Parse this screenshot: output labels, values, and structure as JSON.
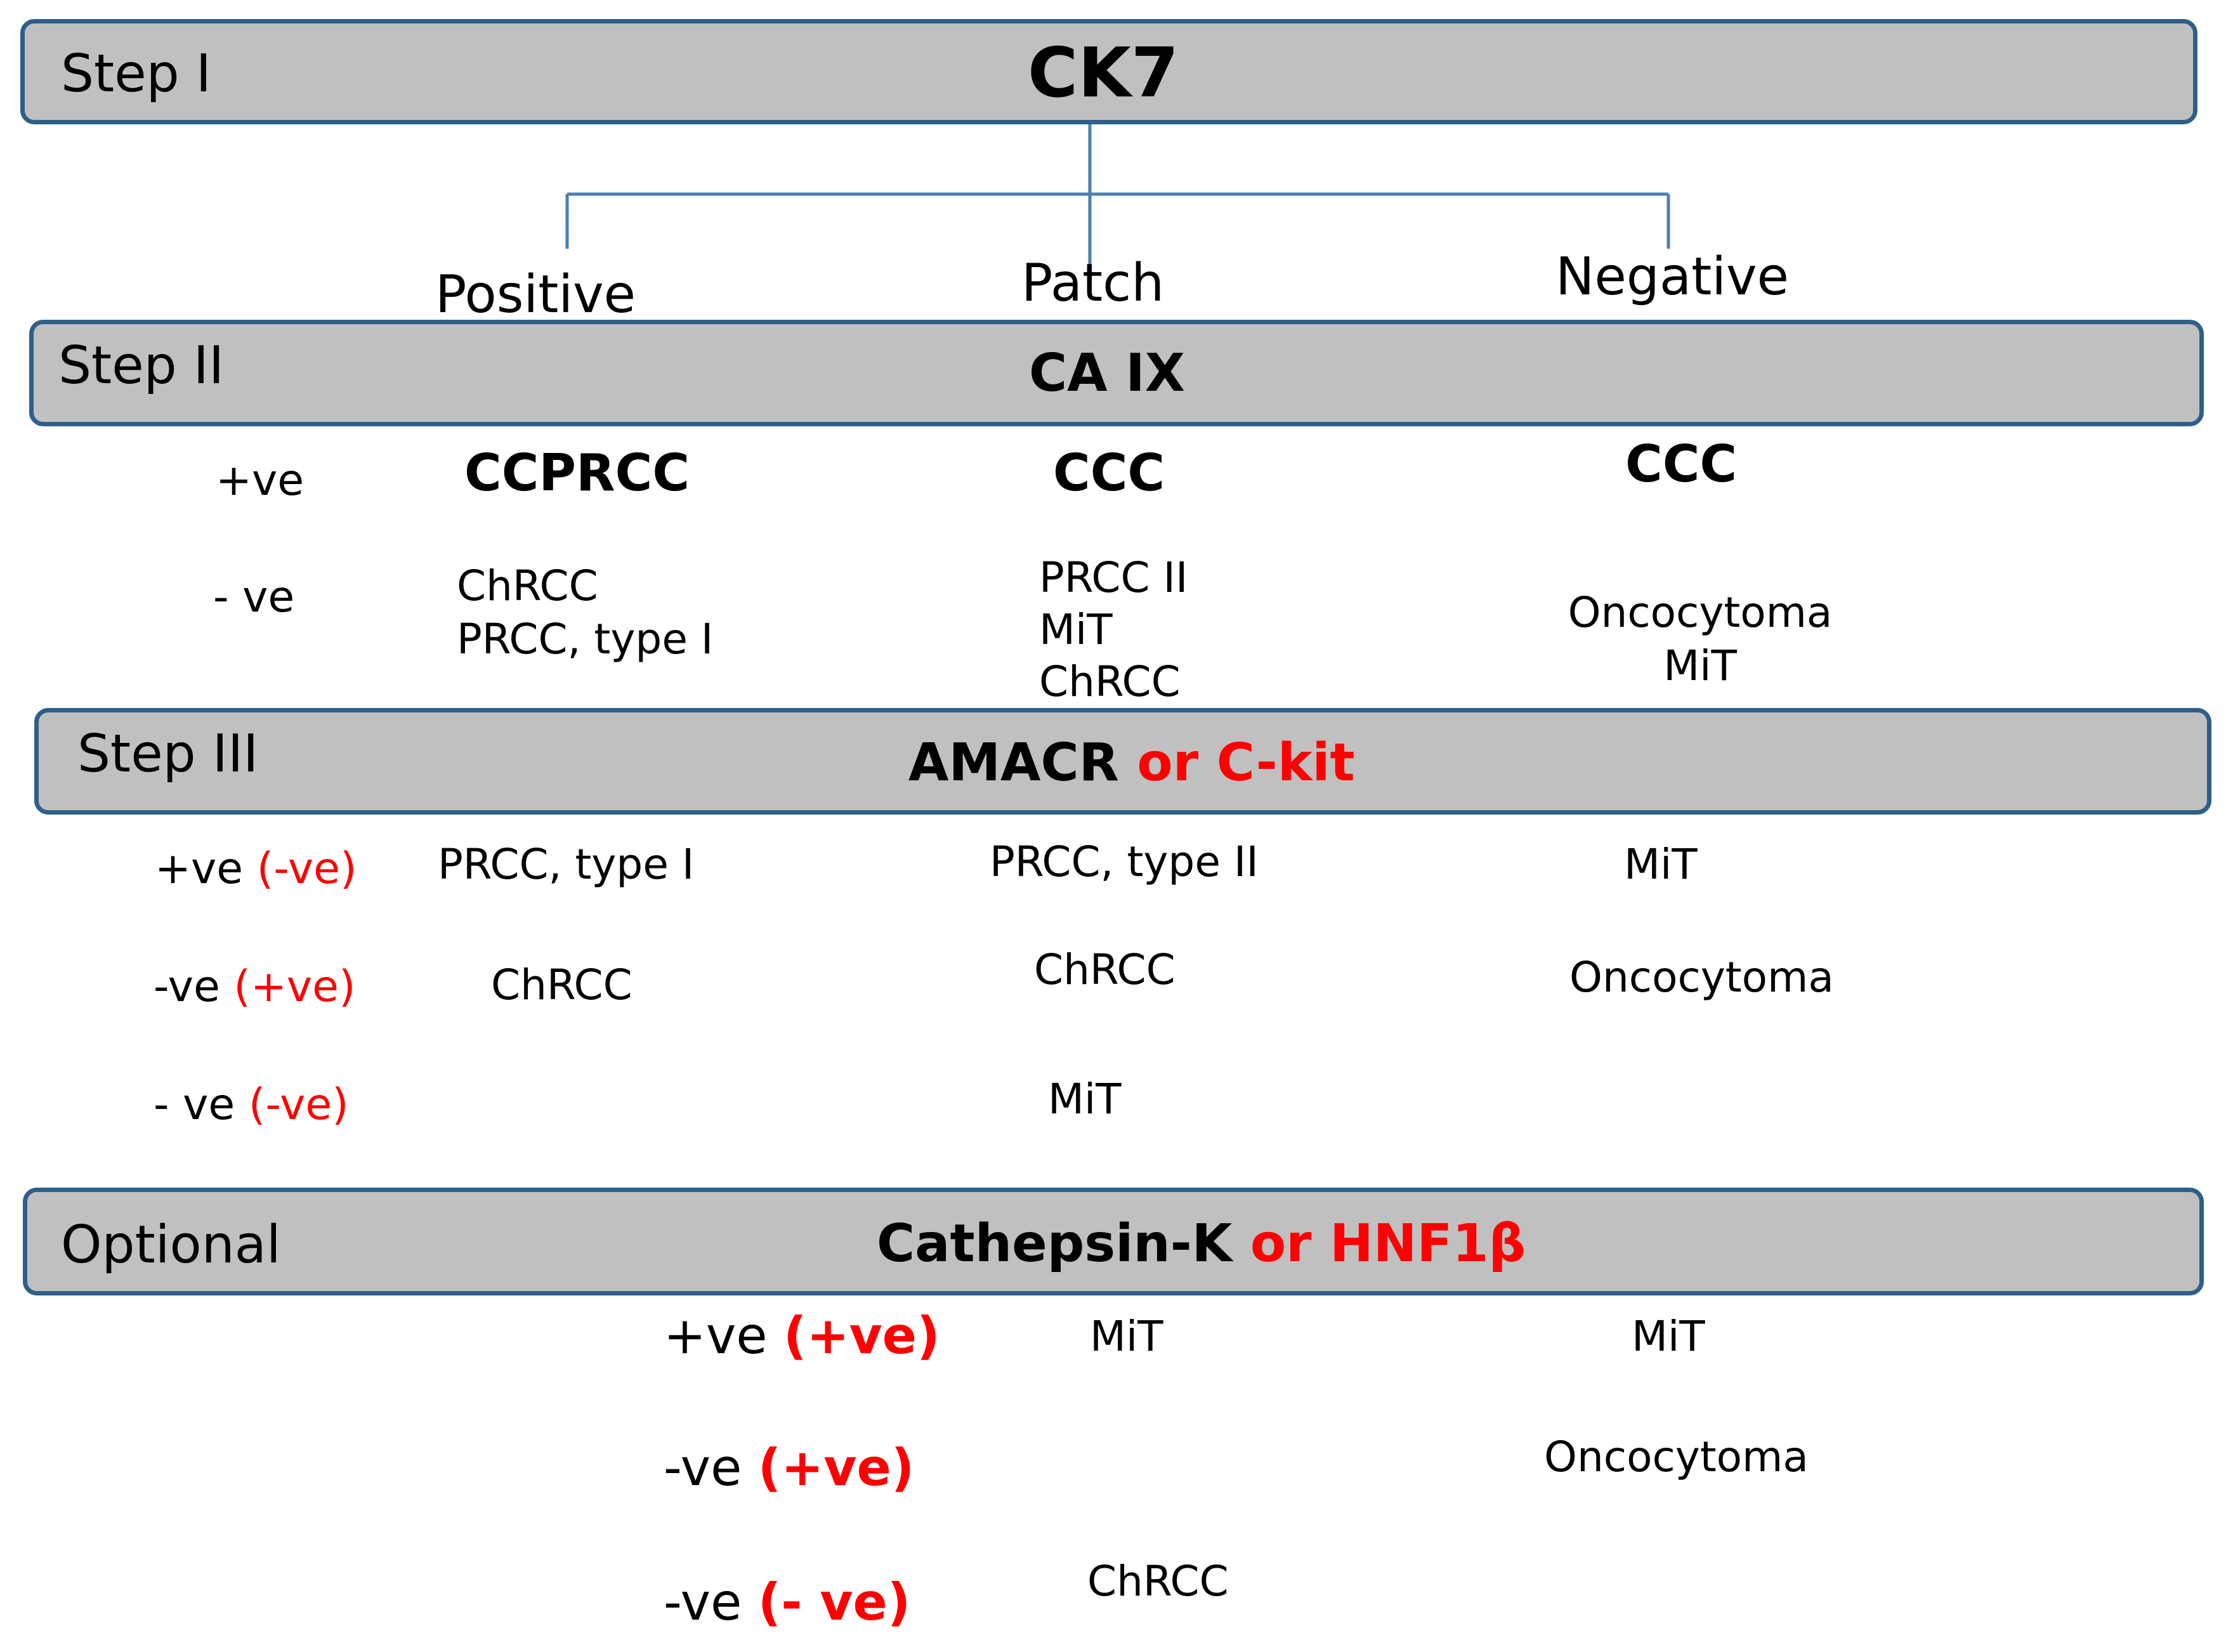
{
  "step1": {
    "label": "Step I",
    "marker": "CK7"
  },
  "branches": {
    "positive": "Positive",
    "patch": "Patch",
    "negative": "Negative"
  },
  "step2": {
    "label": "Step II",
    "marker": "CA IX",
    "pos_label": "+ve",
    "neg_label": "- ve",
    "positive_col": {
      "pos": "CCPRCC",
      "neg": [
        "ChRCC",
        "PRCC, type I"
      ]
    },
    "patch_col": {
      "pos": "CCC",
      "neg": [
        "PRCC II",
        "MiT",
        "ChRCC"
      ]
    },
    "negative_col": {
      "pos": "CCC",
      "neg": [
        "Oncocytoma",
        "MiT"
      ]
    }
  },
  "step3": {
    "label": "Step III",
    "marker_a": "AMACR",
    "marker_or": "or C-kit",
    "rows": [
      {
        "a": "+ve",
        "b": "(-ve)",
        "positive": "PRCC, type I",
        "patch": "PRCC, type II",
        "negative": "MiT"
      },
      {
        "a": "-ve",
        "b": "(+ve)",
        "positive": "ChRCC",
        "patch": "ChRCC",
        "negative": "Oncocytoma"
      },
      {
        "a": "- ve",
        "b": "(-ve)",
        "positive": "",
        "patch": "MiT",
        "negative": ""
      }
    ]
  },
  "optional": {
    "label": "Optional",
    "marker_a": "Cathepsin-K",
    "marker_or": "or HNF1β",
    "rows": [
      {
        "a": "+ve",
        "b": "(+ve)",
        "patch": "MiT",
        "negative": "MiT"
      },
      {
        "a": "-ve",
        "b": "(+ve)",
        "patch": "",
        "negative": "Oncocytoma"
      },
      {
        "a": "-ve",
        "b": "(- ve)",
        "patch": "ChRCC",
        "negative": ""
      }
    ]
  },
  "colors": {
    "bar_fill": "#c0c0c0",
    "bar_border": "#2e5f8a",
    "accent_red": "#ff0000",
    "connector": "#4a7fb0"
  }
}
